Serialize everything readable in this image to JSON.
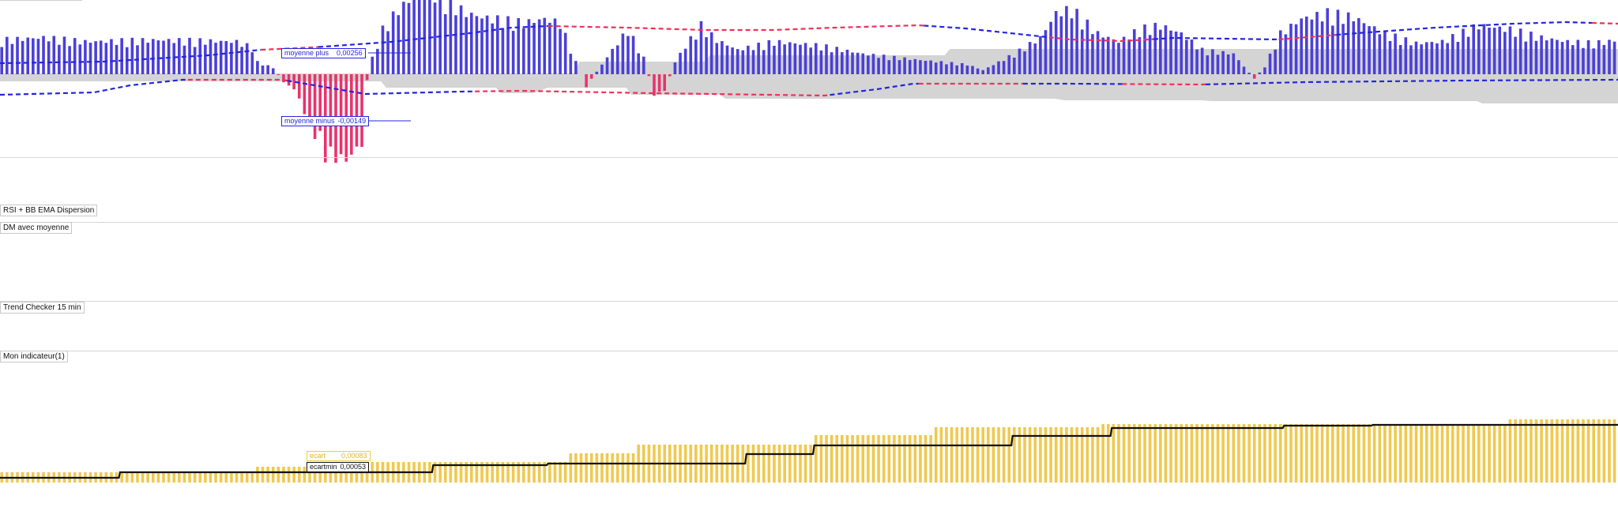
{
  "panels": [
    {
      "id": "p1",
      "label": ""
    },
    {
      "id": "p2",
      "label": "RSI + BB EMA Dispersion"
    },
    {
      "id": "p3",
      "label": "DM avec moyenne"
    },
    {
      "id": "p4",
      "label": "Trend Checker 15 min"
    },
    {
      "id": "p5",
      "label": "Mon indicateur(1)"
    }
  ],
  "colors": {
    "positive_bar": "#4b3fd9",
    "negative_bar": "#e8336d",
    "band": "#d4d4d4",
    "avg_blue": "#2424e0",
    "avg_red": "#f0305a",
    "ecart_bar": "#f0c94e",
    "ecartmin_line": "#111111"
  },
  "chart_data": [
    {
      "type": "bar",
      "panel": "p1",
      "bar_count": 310,
      "series": [
        {
          "name": "moyenne plus",
          "last_value": "0,00256"
        },
        {
          "name": "moyenne minus",
          "last_value": "-0,00149"
        }
      ],
      "ylim": [
        -0.0055,
        0.0052
      ]
    },
    {
      "type": "bar",
      "panel": "p5",
      "bar_count": 310,
      "series": [
        {
          "name": "ecart",
          "last_value": "0,00083"
        },
        {
          "name": "ecartmin",
          "last_value": "0,00053"
        }
      ],
      "ylim": [
        0,
        0.0011
      ]
    }
  ]
}
